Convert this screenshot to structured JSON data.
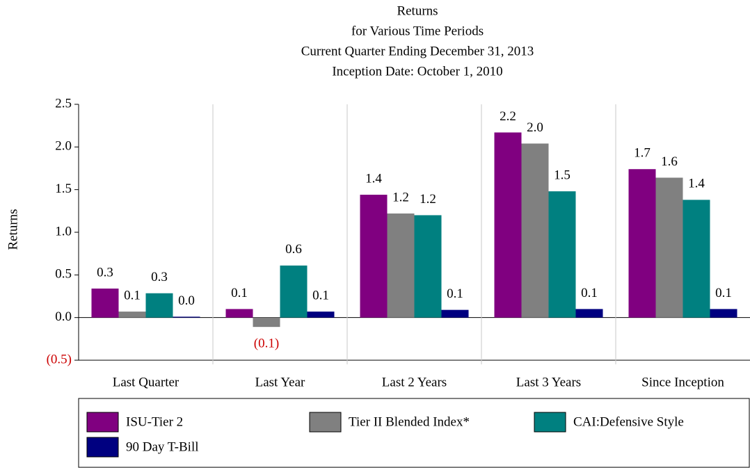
{
  "chart_data": {
    "type": "bar",
    "title": "Returns",
    "subtitle": [
      "for Various Time Periods",
      "Current Quarter Ending December 31, 2013",
      "Inception Date: October 1, 2010"
    ],
    "y_label": "Returns",
    "categories": [
      "Last Quarter",
      "Last Year",
      "Last 2 Years",
      "Last 3 Years",
      "Since Inception"
    ],
    "series": [
      {
        "name": "ISU-Tier 2",
        "color": "#800080",
        "values": [
          0.34,
          0.1,
          1.44,
          2.17,
          1.74
        ],
        "value_labels": [
          "0.3",
          "0.1",
          "1.4",
          "2.2",
          "1.7"
        ]
      },
      {
        "name": "Tier II Blended Index*",
        "color": "#808080",
        "values": [
          0.07,
          -0.11,
          1.22,
          2.04,
          1.64
        ],
        "value_labels": [
          "0.1",
          "(0.1)",
          "1.2",
          "2.0",
          "1.6"
        ]
      },
      {
        "name": "CAI:Defensive Style",
        "color": "#008080",
        "values": [
          0.285,
          0.61,
          1.2,
          1.48,
          1.38
        ],
        "value_labels": [
          "0.3",
          "0.6",
          "1.2",
          "1.5",
          "1.4"
        ]
      },
      {
        "name": "90 Day T-Bill",
        "color": "#000080",
        "values": [
          0.01,
          0.07,
          0.09,
          0.1,
          0.1
        ],
        "value_labels": [
          "0.0",
          "0.1",
          "0.1",
          "0.1",
          "0.1"
        ]
      }
    ],
    "ylim": [
      -0.5,
      2.5
    ],
    "yticks": [
      {
        "value": -0.5,
        "label": "(0.5)"
      },
      {
        "value": 0,
        "label": "0.0"
      },
      0.5,
      {
        "value": 1,
        "label": "1.0"
      },
      1.5,
      {
        "value": 2,
        "label": "2.0"
      },
      2.5
    ],
    "negative_color": "#cc0000",
    "category_separators": true
  }
}
